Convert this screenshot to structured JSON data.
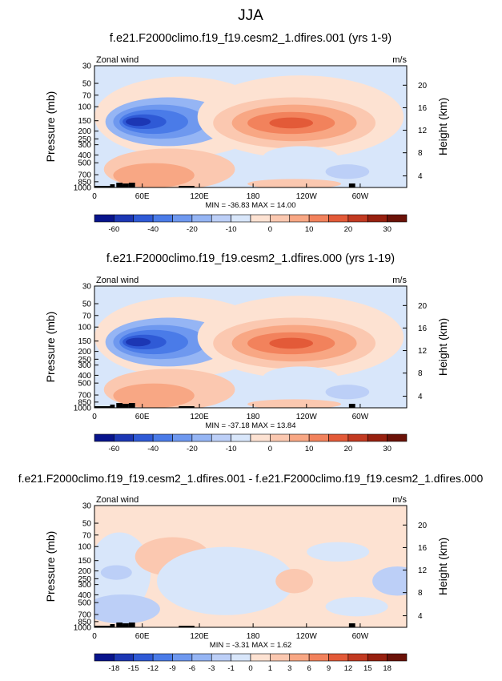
{
  "figure": {
    "title": "JJA"
  },
  "chart_data": [
    {
      "type": "heatmap",
      "title": "f.e21.F2000climo.f19_f19.cesm2_1.dfires.001 (yrs 1-9)",
      "variable": "Zonal wind",
      "units": "m/s",
      "ylabel": "Pressure (mb)",
      "ylabel_right": "Height (km)",
      "y_ticks": [
        "30",
        "50",
        "70",
        "100",
        "150",
        "200",
        "250",
        "300",
        "400",
        "500",
        "700",
        "850",
        "1000"
      ],
      "x_ticks": [
        "0",
        "60E",
        "120E",
        "180",
        "120W",
        "60W"
      ],
      "height_ticks": [
        "20",
        "16",
        "12",
        "8",
        "4"
      ],
      "stats": "MIN = -36.83  MAX = 14.00",
      "colorbar_ticks": [
        "-60",
        "-40",
        "-20",
        "-10",
        "0",
        "10",
        "20",
        "30"
      ]
    },
    {
      "type": "heatmap",
      "title": "f.e21.F2000climo.f19_f19.cesm2_1.dfires.000 (yrs 1-19)",
      "variable": "Zonal wind",
      "units": "m/s",
      "ylabel": "Pressure (mb)",
      "ylabel_right": "Height (km)",
      "y_ticks": [
        "30",
        "50",
        "70",
        "100",
        "150",
        "200",
        "250",
        "300",
        "400",
        "500",
        "700",
        "850",
        "1000"
      ],
      "x_ticks": [
        "0",
        "60E",
        "120E",
        "180",
        "120W",
        "60W"
      ],
      "height_ticks": [
        "20",
        "16",
        "12",
        "8",
        "4"
      ],
      "stats": "MIN = -37.18  MAX = 13.84",
      "colorbar_ticks": [
        "-60",
        "-40",
        "-20",
        "-10",
        "0",
        "10",
        "20",
        "30"
      ]
    },
    {
      "type": "heatmap",
      "title": "f.e21.F2000climo.f19_f19.cesm2_1.dfires.001 - f.e21.F2000climo.f19_f19.cesm2_1.dfires.000",
      "variable": "Zonal wind",
      "units": "m/s",
      "ylabel": "Pressure (mb)",
      "ylabel_right": "Height (km)",
      "y_ticks": [
        "30",
        "50",
        "70",
        "100",
        "150",
        "200",
        "250",
        "300",
        "400",
        "500",
        "700",
        "850",
        "1000"
      ],
      "x_ticks": [
        "0",
        "60E",
        "120E",
        "180",
        "120W",
        "60W"
      ],
      "height_ticks": [
        "20",
        "16",
        "12",
        "8",
        "4"
      ],
      "stats": "MIN = -3.31  MAX = 1.62",
      "colorbar_ticks": [
        "-18",
        "-15",
        "-12",
        "-9",
        "-6",
        "-3",
        "-1",
        "0",
        "1",
        "3",
        "6",
        "9",
        "12",
        "15",
        "18"
      ]
    }
  ],
  "colors": {
    "palette": [
      "#08148c",
      "#1c37b4",
      "#2f5ad6",
      "#4a7be8",
      "#6e98ef",
      "#95b5f4",
      "#bccff7",
      "#d8e6fa",
      "#fde2d2",
      "#fbc8b0",
      "#f8a784",
      "#f2825c",
      "#e35a38",
      "#c23a21",
      "#97200f",
      "#6b1208"
    ],
    "mean_palette": [
      "#08148c",
      "#1c37b4",
      "#2f5ad6",
      "#4a7be8",
      "#6e98ef",
      "#95b5f4",
      "#bccff7",
      "#d8e6fa",
      "#fde2d2",
      "#fbc8b0",
      "#f8a784",
      "#f2825c",
      "#e35a38",
      "#c23a21",
      "#97200f",
      "#6b1208"
    ]
  }
}
